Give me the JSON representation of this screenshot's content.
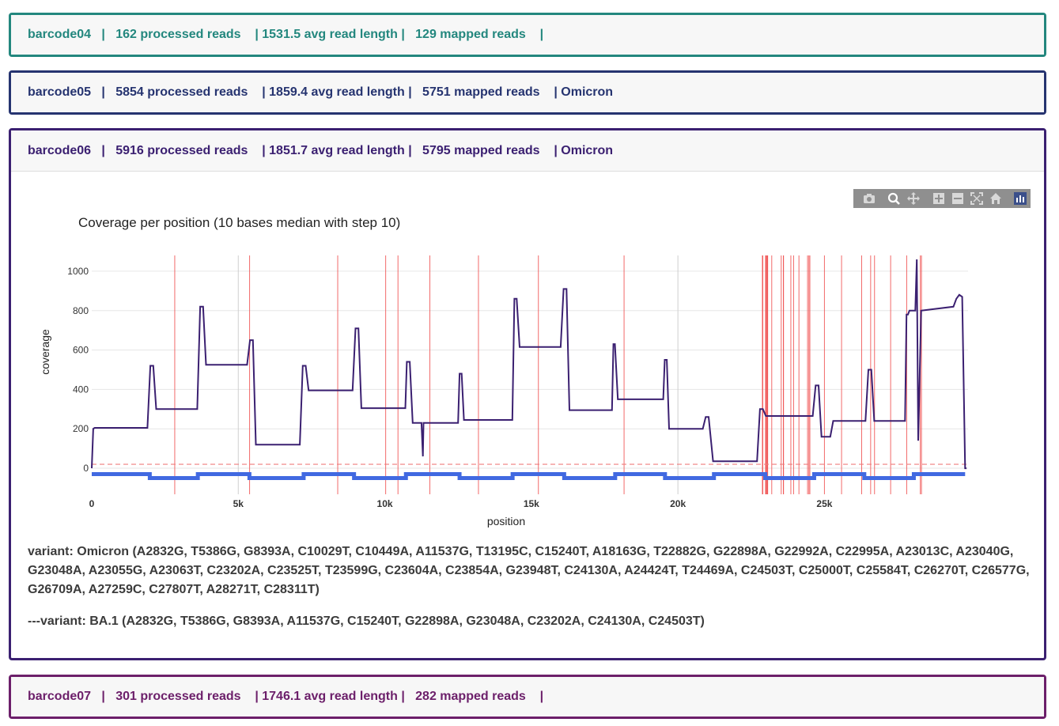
{
  "barcodes": [
    {
      "name": "barcode04",
      "color": "#23877e",
      "processed": "162 processed reads",
      "avg": "| 1531.5 avg read length |",
      "mapped": "129 mapped reads",
      "variant": "|"
    },
    {
      "name": "barcode05",
      "color": "#263470",
      "processed": "5854 processed reads",
      "avg": "| 1859.4 avg read length |",
      "mapped": "5751 mapped reads",
      "variant": "| Omicron"
    },
    {
      "name": "barcode06",
      "color": "#3b2071",
      "processed": "5916 processed reads",
      "avg": "| 1851.7 avg read length |",
      "mapped": "5795 mapped reads",
      "variant": "| Omicron"
    },
    {
      "name": "barcode07",
      "color": "#6c1f6a",
      "processed": "301 processed reads",
      "avg": "| 1746.1 avg read length |",
      "mapped": "282 mapped reads",
      "variant": "|"
    }
  ],
  "separator": "|",
  "toolbar_icons": [
    "camera-icon",
    "zoom-icon",
    "pan-icon",
    "zoom-in-icon",
    "zoom-out-icon",
    "autoscale-icon",
    "reset-axes-icon",
    "plotly-logo-icon"
  ],
  "variant_line": "variant: Omicron (A2832G, T5386G, G8393A, C10029T, C10449A, A11537G, T13195C, C15240T, A18163G, T22882G, G22898A, G22992A, C22995A, A23013C, A23040G, G23048A, A23055G, A23063T, C23202A, C23525T, T23599G, C23604A, C23854A, G23948T, C24130A, A24424T, T24469A, C24503T, C25000T, C25584T, C26270T, C26577G, G26709A, A27259C, C27807T, A28271T, C28311T)",
  "subvariant_line": "---variant: BA.1 (A2832G, T5386G, G8393A, A11537G, C15240T, G22898A, G23048A, C23202A, C24130A, C24503T)",
  "chart_data": {
    "type": "line",
    "title": "Coverage per position (10 bases median with step 10)",
    "xlabel": "position",
    "ylabel": "coverage",
    "xlim": [
      0,
      29900
    ],
    "ylim": [
      -60,
      1080
    ],
    "x_ticks": [
      0,
      5000,
      10000,
      15000,
      20000,
      25000
    ],
    "x_tick_labels": [
      "0",
      "5k",
      "10k",
      "15k",
      "20k",
      "25k"
    ],
    "y_ticks": [
      0,
      200,
      400,
      600,
      800,
      1000
    ],
    "y_tick_labels": [
      "0",
      "200",
      "400",
      "600",
      "800",
      "1000"
    ],
    "grid": true,
    "series": [
      {
        "color": "#3b2071",
        "x": [
          0,
          50,
          100,
          1900,
          2000,
          2100,
          2200,
          3600,
          3700,
          3800,
          3900,
          5300,
          5400,
          5500,
          5600,
          7100,
          7200,
          7300,
          7400,
          8900,
          9000,
          9100,
          9200,
          10700,
          10750,
          10850,
          10950,
          11250,
          11300,
          11320,
          11350,
          12500,
          12550,
          12620,
          12700,
          14350,
          14420,
          14500,
          14600,
          16000,
          16100,
          16200,
          16300,
          17750,
          17800,
          17850,
          17950,
          19500,
          19550,
          19620,
          19700,
          20850,
          20950,
          21050,
          21200,
          22700,
          22800,
          22900,
          23000,
          24600,
          24700,
          24800,
          24900,
          25200,
          25300,
          25400,
          25500,
          26400,
          26500,
          26600,
          26700,
          27750,
          27800,
          27850,
          27900,
          28100,
          28150,
          28200,
          28300,
          29400,
          29500,
          29600,
          29700,
          29800,
          29850
        ],
        "y": [
          0,
          200,
          205,
          205,
          520,
          520,
          300,
          300,
          820,
          820,
          525,
          525,
          650,
          650,
          120,
          120,
          520,
          520,
          395,
          395,
          710,
          710,
          305,
          305,
          540,
          540,
          230,
          230,
          60,
          230,
          230,
          230,
          480,
          480,
          245,
          245,
          860,
          860,
          615,
          615,
          910,
          910,
          295,
          295,
          630,
          630,
          350,
          350,
          550,
          550,
          200,
          200,
          260,
          260,
          35,
          35,
          300,
          300,
          265,
          265,
          420,
          420,
          160,
          160,
          240,
          240,
          240,
          240,
          500,
          500,
          240,
          240,
          780,
          780,
          800,
          800,
          1060,
          140,
          800,
          820,
          860,
          880,
          870,
          0,
          0
        ]
      }
    ],
    "threshold_line": {
      "y": 20,
      "color": "#ef7d7d",
      "dashed": true
    },
    "mutation_positions": [
      2832,
      5386,
      8393,
      10029,
      10449,
      11537,
      13195,
      15240,
      18163,
      22882,
      22898,
      22992,
      22995,
      23013,
      23040,
      23048,
      23055,
      23063,
      23202,
      23525,
      23599,
      23604,
      23854,
      23948,
      24130,
      24424,
      24469,
      24503,
      25000,
      25584,
      26270,
      26577,
      26709,
      27259,
      27807,
      28271,
      28311
    ],
    "grey_lines": [
      5000,
      20000
    ],
    "amplicon_track": {
      "color": "#4169e1",
      "y_high": -30,
      "y_low": -50,
      "breaks": [
        0,
        1980,
        3620,
        5380,
        7230,
        8950,
        10720,
        12550,
        14360,
        16120,
        17860,
        19560,
        21230,
        22980,
        24650,
        26360,
        28050,
        29800
      ]
    }
  }
}
